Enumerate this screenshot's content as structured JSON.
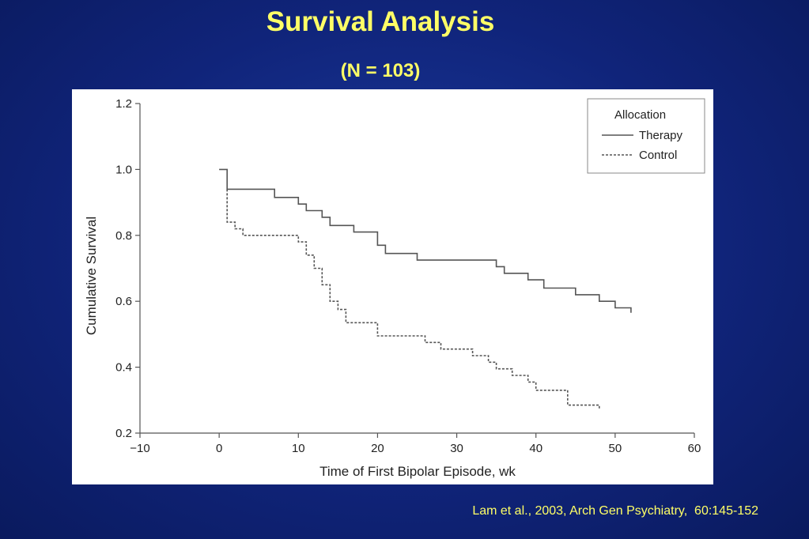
{
  "slide": {
    "title": "Survival Analysis",
    "subtitle": "(N = 103)",
    "citation": "Lam et al., 2003, Arch Gen Psychiatry,  60:145-152"
  },
  "colors": {
    "background": "#10247a",
    "title_text": "#ffff66",
    "plot_line": "#555555"
  },
  "chart_data": {
    "type": "line",
    "step": true,
    "xlabel": "Time of First Bipolar Episode, wk",
    "ylabel": "Cumulative Survival",
    "xlim": [
      -10,
      60
    ],
    "ylim": [
      0.2,
      1.2
    ],
    "x_ticks": [
      "−10",
      "0",
      "10",
      "20",
      "30",
      "40",
      "50",
      "60"
    ],
    "y_ticks": [
      "0.2",
      "0.4",
      "0.6",
      "0.8",
      "1.0",
      "1.2"
    ],
    "x_tick_values": [
      -10,
      0,
      10,
      20,
      30,
      40,
      50,
      60
    ],
    "y_tick_values": [
      0.2,
      0.4,
      0.6,
      0.8,
      1.0,
      1.2
    ],
    "grid": false,
    "legend": {
      "title": "Allocation",
      "position": "top-right"
    },
    "series": [
      {
        "name": "Therapy",
        "style": "solid",
        "points": [
          [
            0,
            1.0
          ],
          [
            1,
            1.0
          ],
          [
            1,
            0.94
          ],
          [
            7,
            0.94
          ],
          [
            7,
            0.915
          ],
          [
            10,
            0.915
          ],
          [
            10,
            0.895
          ],
          [
            11,
            0.895
          ],
          [
            11,
            0.875
          ],
          [
            13,
            0.875
          ],
          [
            13,
            0.855
          ],
          [
            14,
            0.855
          ],
          [
            14,
            0.83
          ],
          [
            17,
            0.83
          ],
          [
            17,
            0.81
          ],
          [
            20,
            0.81
          ],
          [
            20,
            0.77
          ],
          [
            21,
            0.77
          ],
          [
            21,
            0.745
          ],
          [
            25,
            0.745
          ],
          [
            25,
            0.725
          ],
          [
            35,
            0.725
          ],
          [
            35,
            0.705
          ],
          [
            36,
            0.705
          ],
          [
            36,
            0.685
          ],
          [
            39,
            0.685
          ],
          [
            39,
            0.665
          ],
          [
            41,
            0.665
          ],
          [
            41,
            0.64
          ],
          [
            45,
            0.64
          ],
          [
            45,
            0.62
          ],
          [
            48,
            0.62
          ],
          [
            48,
            0.6
          ],
          [
            50,
            0.6
          ],
          [
            50,
            0.58
          ],
          [
            52,
            0.58
          ],
          [
            52,
            0.565
          ]
        ]
      },
      {
        "name": "Control",
        "style": "dashed",
        "points": [
          [
            1,
            0.94
          ],
          [
            1,
            0.84
          ],
          [
            2,
            0.84
          ],
          [
            2,
            0.82
          ],
          [
            3,
            0.82
          ],
          [
            3,
            0.8
          ],
          [
            10,
            0.8
          ],
          [
            10,
            0.78
          ],
          [
            11,
            0.78
          ],
          [
            11,
            0.74
          ],
          [
            12,
            0.74
          ],
          [
            12,
            0.7
          ],
          [
            13,
            0.7
          ],
          [
            13,
            0.65
          ],
          [
            14,
            0.65
          ],
          [
            14,
            0.6
          ],
          [
            15,
            0.6
          ],
          [
            15,
            0.575
          ],
          [
            16,
            0.575
          ],
          [
            16,
            0.535
          ],
          [
            20,
            0.535
          ],
          [
            20,
            0.495
          ],
          [
            26,
            0.495
          ],
          [
            26,
            0.475
          ],
          [
            28,
            0.475
          ],
          [
            28,
            0.455
          ],
          [
            32,
            0.455
          ],
          [
            32,
            0.435
          ],
          [
            34,
            0.435
          ],
          [
            34,
            0.415
          ],
          [
            35,
            0.415
          ],
          [
            35,
            0.395
          ],
          [
            37,
            0.395
          ],
          [
            37,
            0.375
          ],
          [
            39,
            0.375
          ],
          [
            39,
            0.355
          ],
          [
            40,
            0.355
          ],
          [
            40,
            0.33
          ],
          [
            44,
            0.33
          ],
          [
            44,
            0.285
          ],
          [
            48,
            0.285
          ],
          [
            48,
            0.27
          ]
        ]
      }
    ]
  }
}
